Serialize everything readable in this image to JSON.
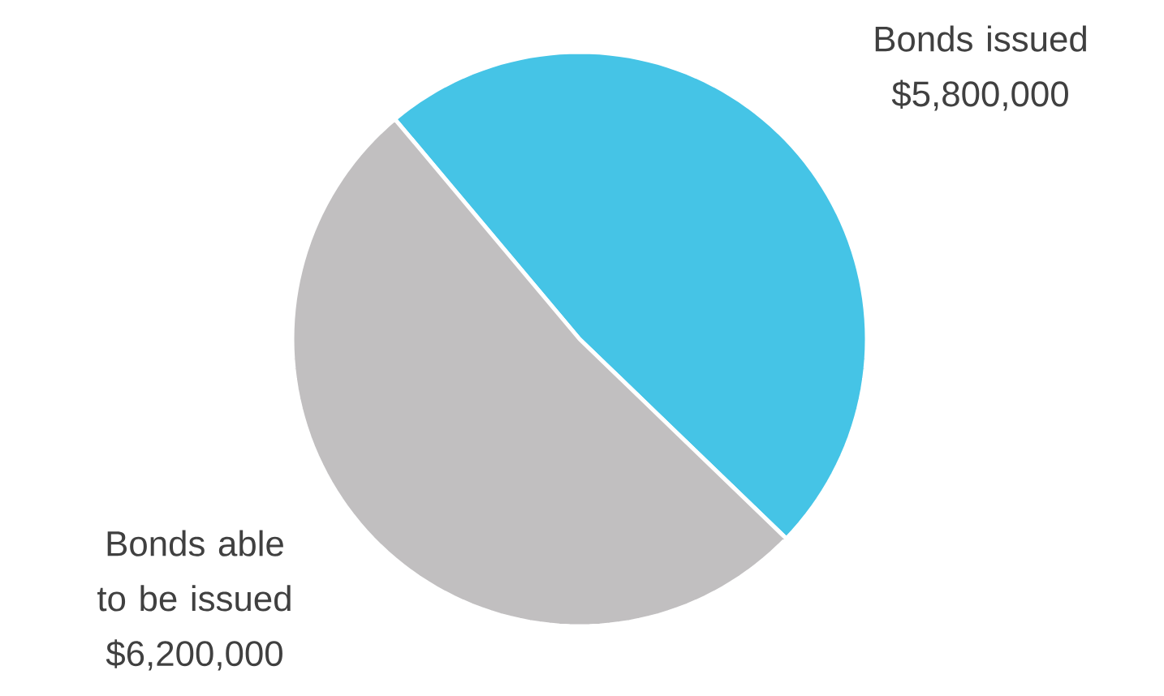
{
  "chart_data": {
    "type": "pie",
    "categories": [
      "Bonds issued",
      "Bonds able to be issued"
    ],
    "values": [
      5800000,
      6200000
    ],
    "value_labels": [
      "$5,800,000",
      "$6,200,000"
    ],
    "colors": [
      "#45c4e6",
      "#c1bfc0"
    ]
  }
}
